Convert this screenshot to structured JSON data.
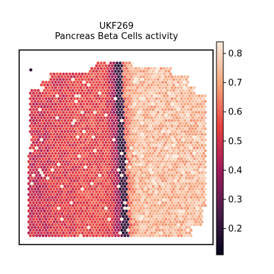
{
  "chart_data": {
    "type": "heatmap",
    "subtype": "spatial-hexbin",
    "title_lines": [
      "UKF269",
      "Pancreas Beta Cells activity"
    ],
    "xlabel": "",
    "ylabel": "",
    "grid": false,
    "axis_ticks": false,
    "colorbar": {
      "colormap": "rocket",
      "range": [
        0.11,
        0.84
      ],
      "ticks": [
        0.2,
        0.3,
        0.4,
        0.5,
        0.6,
        0.7,
        0.8
      ],
      "tick_labels": [
        "0.2",
        "0.3",
        "0.4",
        "0.5",
        "0.6",
        "0.7",
        "0.8"
      ],
      "placement": "right"
    },
    "regions": [
      {
        "name": "left tissue area",
        "typical_value": 0.55
      },
      {
        "name": "central dark band",
        "typical_value": 0.2
      },
      {
        "name": "right tissue area",
        "typical_value": 0.75
      }
    ]
  }
}
